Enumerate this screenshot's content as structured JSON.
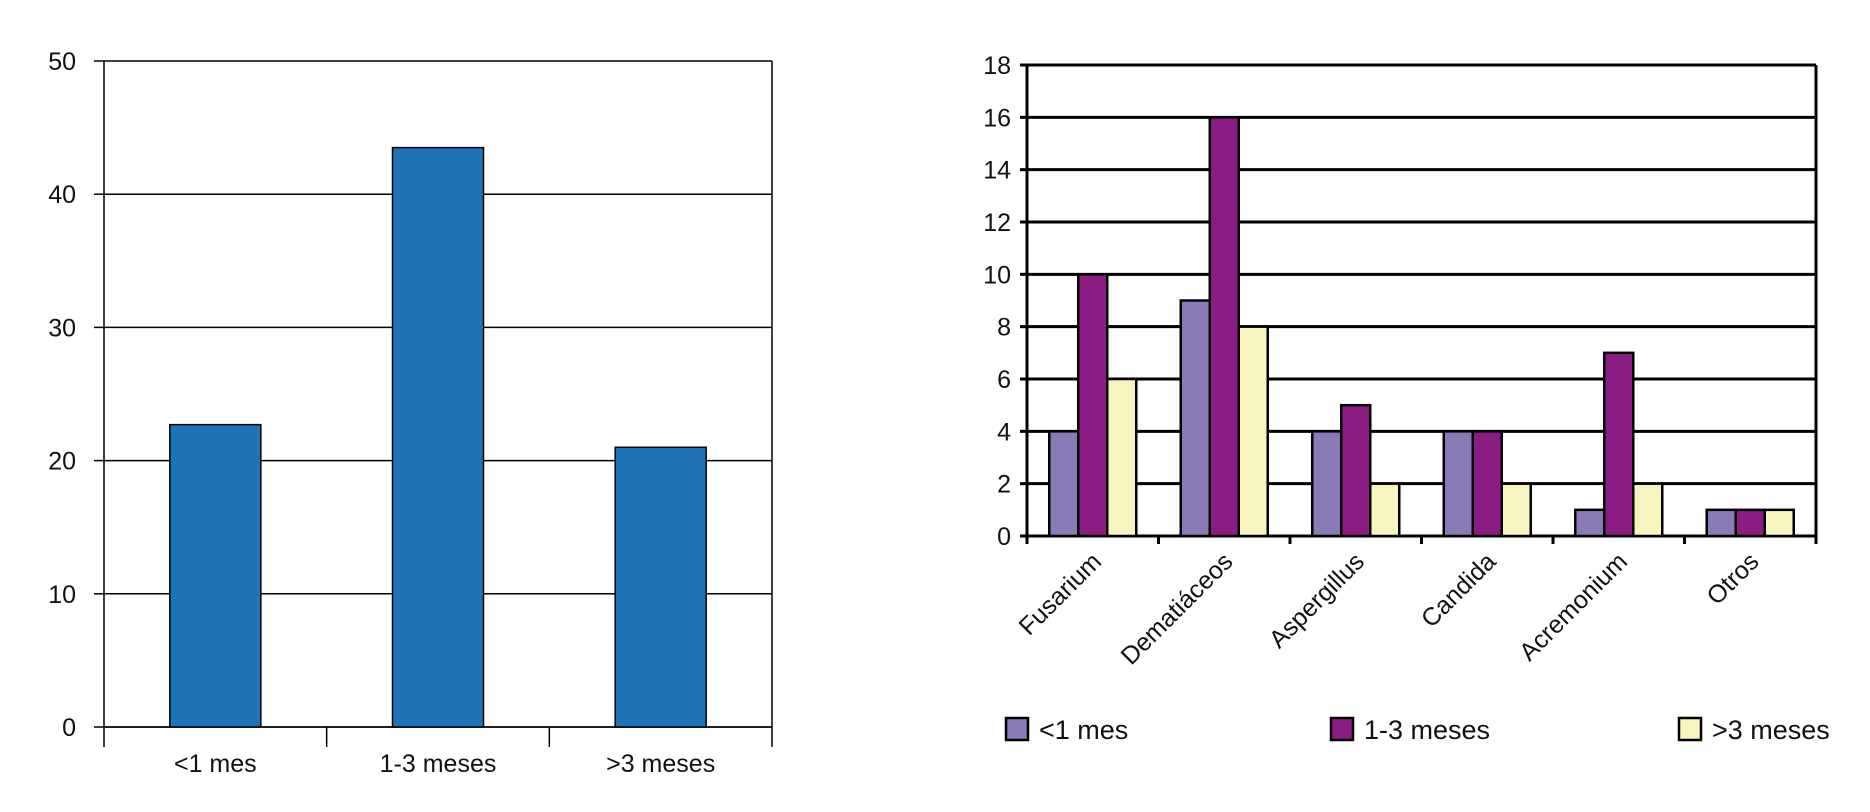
{
  "chart_data": [
    {
      "type": "bar",
      "categories": [
        "<1 mes",
        "1-3 meses",
        ">3 meses"
      ],
      "values": [
        22.7,
        43.5,
        21.0
      ],
      "ylim": [
        0,
        50
      ],
      "yticks": [
        "0",
        "10",
        "20",
        "30",
        "40",
        "50"
      ],
      "grid": true,
      "colors": {
        "bar": "#1f74b8"
      }
    },
    {
      "type": "bar",
      "categories": [
        "Fusarium",
        "Dematiáceos",
        "Aspergillus",
        "Candida",
        "Acremonium",
        "Otros"
      ],
      "series": [
        {
          "name": "<1 mes",
          "values": [
            4,
            9,
            4,
            4,
            1,
            1
          ]
        },
        {
          "name": "1-3 meses",
          "values": [
            10,
            16,
            5,
            4,
            7,
            1
          ]
        },
        {
          "name": ">3 meses",
          "values": [
            6,
            8,
            2,
            2,
            2,
            1
          ]
        }
      ],
      "ylim": [
        0,
        18
      ],
      "yticks": [
        "0",
        "2",
        "4",
        "6",
        "8",
        "10",
        "12",
        "14",
        "16",
        "18"
      ],
      "grid": true,
      "legend": "bottom",
      "colors": {
        "series": [
          "#8b7ab8",
          "#8b1c84",
          "#f8f4bf"
        ]
      }
    }
  ]
}
